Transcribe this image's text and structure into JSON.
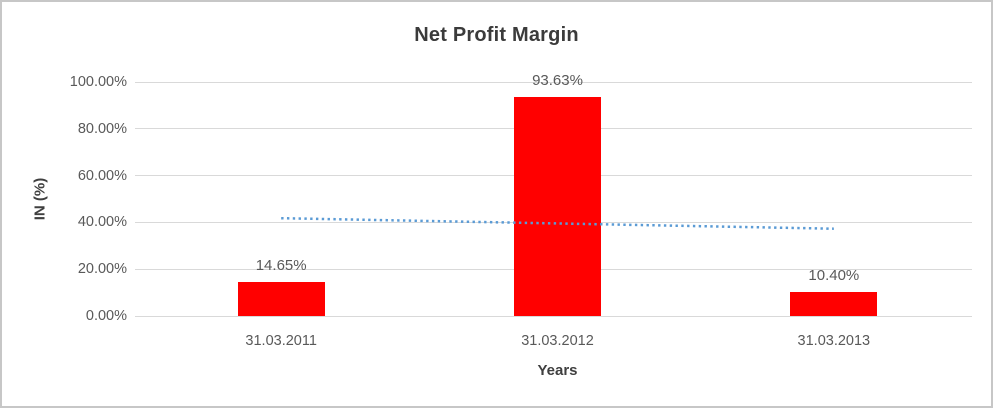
{
  "window": {
    "background": "#ffffff",
    "border_color": "#c7c7c7"
  },
  "chart_data": {
    "type": "bar",
    "title": "Net Profit Margin",
    "categories": [
      "31.03.2011",
      "31.03.2012",
      "31.03.2013"
    ],
    "values": [
      14.65,
      93.63,
      10.4
    ],
    "data_labels": [
      "14.65%",
      "93.63%",
      "10.40%"
    ],
    "xlabel": "Years",
    "ylabel": "IN (%)",
    "ylim": [
      0,
      100
    ],
    "yticks": [
      0,
      20,
      40,
      60,
      80,
      100
    ],
    "ytick_labels": [
      "0.00%",
      "20.00%",
      "40.00%",
      "60.00%",
      "80.00%",
      "100.00%"
    ],
    "grid": true,
    "legend": "none",
    "colors": {
      "bar": "#ff0000",
      "gridline": "#d9d9d9",
      "title_text": "#3b3b3b",
      "axis_title_text": "#3f3f3f",
      "tick_text": "#595959",
      "data_label_text": "#595959"
    },
    "trendline": {
      "type": "linear",
      "style": "dotted",
      "color": "#5b9bd5",
      "start_value": 41.8,
      "end_value": 37.3
    }
  }
}
